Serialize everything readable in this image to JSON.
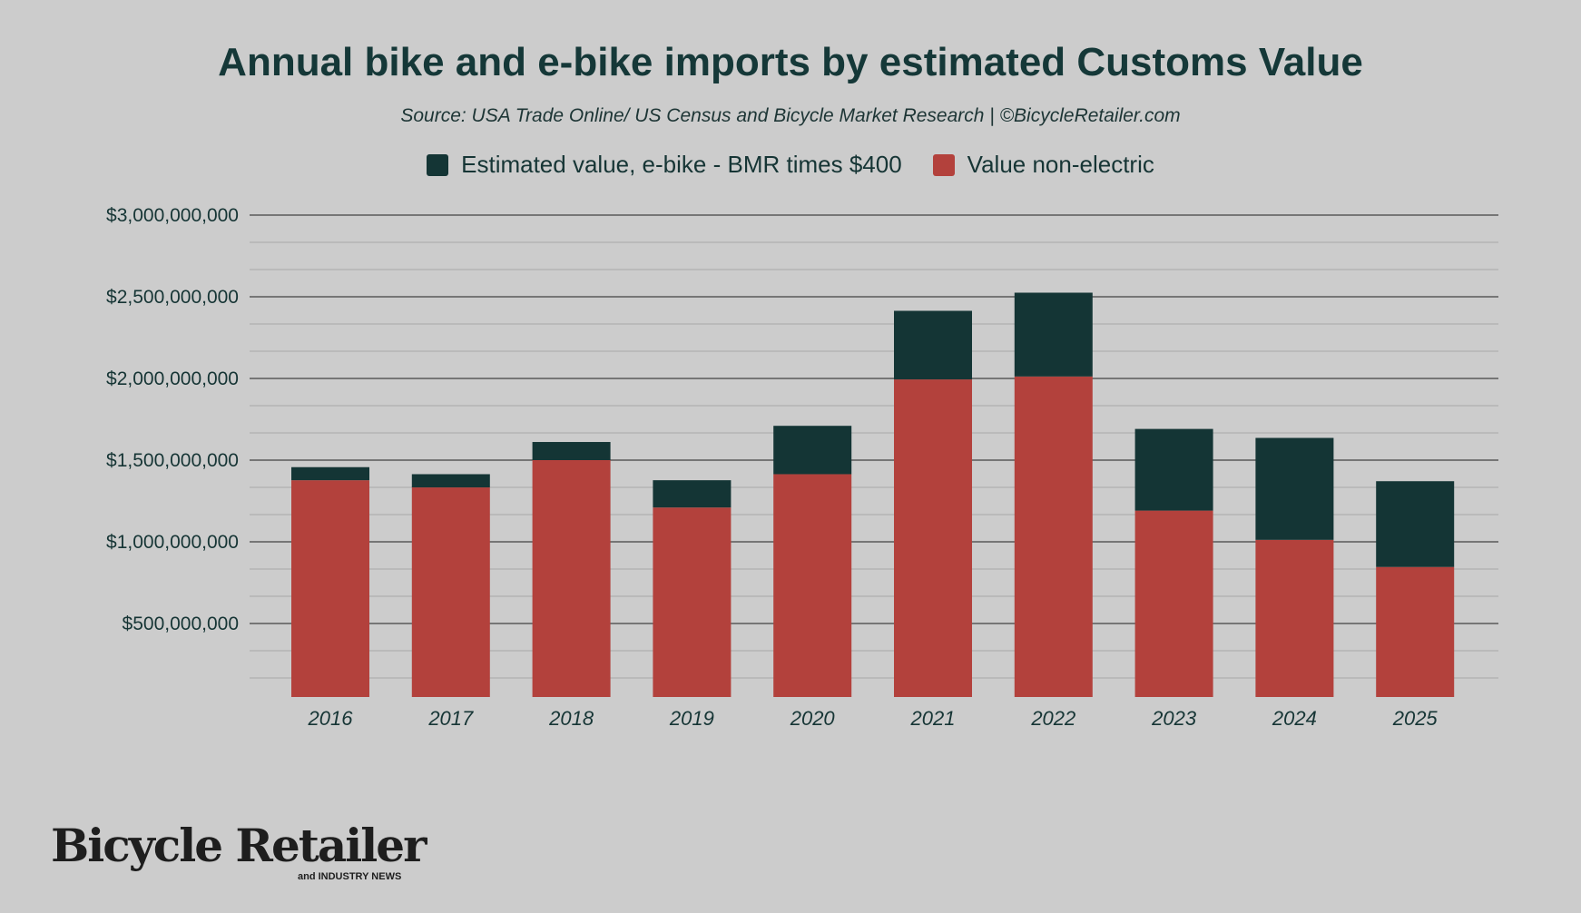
{
  "chart_data": {
    "type": "bar",
    "stacked": true,
    "title": "Annual bike and e-bike imports by estimated Customs Value",
    "subtitle": "Source: USA Trade Online/ US Census and Bicycle Market Research | ©BicycleRetailer.com",
    "xlabel": "",
    "ylabel": "",
    "categories": [
      "2016",
      "2017",
      "2018",
      "2019",
      "2020",
      "2021",
      "2022",
      "2023",
      "2024",
      "2025"
    ],
    "series": [
      {
        "name": "Value non-electric",
        "color": "#b3413c",
        "values": [
          1377000000,
          1333000000,
          1500000000,
          1210000000,
          1414000000,
          1994000000,
          2012000000,
          1191000000,
          1012000000,
          846000000
        ]
      },
      {
        "name": "Estimated value, e-bike - BMR times $400",
        "color": "#143535",
        "values": [
          80000000,
          81000000,
          111000000,
          167000000,
          296000000,
          420000000,
          513000000,
          500000000,
          624000000,
          525000000
        ]
      }
    ],
    "legend_order": [
      1,
      0
    ],
    "legend_position": "top",
    "ylim": [
      50000000,
      3000000000
    ],
    "yticks": [
      500000000,
      1000000000,
      1500000000,
      2000000000,
      2500000000,
      3000000000
    ],
    "ytick_labels": [
      "$500,000,000",
      "$1,000,000,000",
      "$1,500,000,000",
      "$2,000,000,000",
      "$2,500,000,000",
      "$3,000,000,000"
    ],
    "grid": true
  },
  "logo": {
    "text": "Bicycle Retailer",
    "subtext": "and INDUSTRY NEWS"
  }
}
